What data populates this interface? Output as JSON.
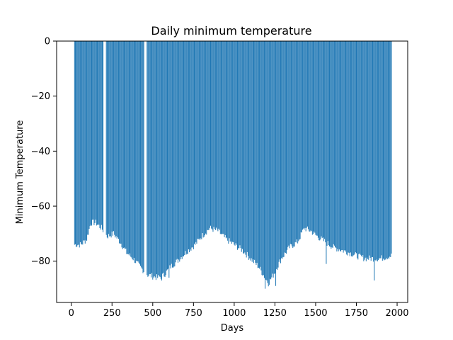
{
  "chart_data": {
    "type": "bar",
    "title": "Daily minimum temperature",
    "xlabel": "Days",
    "ylabel": "Minimum Temperature",
    "xlim": [
      -90,
      2065
    ],
    "ylim": [
      -95,
      0
    ],
    "xticks": [
      0,
      250,
      500,
      750,
      1000,
      1250,
      1500,
      1750,
      2000
    ],
    "yticks": [
      -80,
      -60,
      -40,
      -20,
      0
    ],
    "grid": false,
    "legend": "none",
    "bar_color": "#1f77b4",
    "bar_spacing_days": 5,
    "gaps": [
      [
        196,
        214
      ],
      [
        446,
        460
      ]
    ],
    "series": [
      {
        "day_range": [
          20,
          1965
        ],
        "profile_points": [
          [
            20,
            -74
          ],
          [
            60,
            -74
          ],
          [
            95,
            -72
          ],
          [
            120,
            -66
          ],
          [
            150,
            -66
          ],
          [
            185,
            -68
          ],
          [
            220,
            -71
          ],
          [
            260,
            -70
          ],
          [
            300,
            -73
          ],
          [
            340,
            -77
          ],
          [
            380,
            -79
          ],
          [
            420,
            -82
          ],
          [
            470,
            -85
          ],
          [
            530,
            -86
          ],
          [
            570,
            -85
          ],
          [
            610,
            -82
          ],
          [
            650,
            -80
          ],
          [
            700,
            -77
          ],
          [
            760,
            -74
          ],
          [
            800,
            -71
          ],
          [
            850,
            -68
          ],
          [
            900,
            -69
          ],
          [
            950,
            -72
          ],
          [
            1000,
            -74
          ],
          [
            1050,
            -76
          ],
          [
            1100,
            -79
          ],
          [
            1150,
            -82
          ],
          [
            1190,
            -86
          ],
          [
            1210,
            -88
          ],
          [
            1240,
            -85
          ],
          [
            1290,
            -79
          ],
          [
            1340,
            -75
          ],
          [
            1390,
            -73
          ],
          [
            1430,
            -68
          ],
          [
            1470,
            -69
          ],
          [
            1510,
            -71
          ],
          [
            1560,
            -73
          ],
          [
            1610,
            -75
          ],
          [
            1660,
            -76
          ],
          [
            1710,
            -77
          ],
          [
            1750,
            -78
          ],
          [
            1800,
            -79
          ],
          [
            1860,
            -79
          ],
          [
            1900,
            -79
          ],
          [
            1965,
            -78
          ]
        ],
        "spikes": [
          [
            1190,
            -90
          ],
          [
            1255,
            -89
          ],
          [
            1565,
            -81
          ],
          [
            1860,
            -87
          ],
          [
            555,
            -87
          ],
          [
            600,
            -86
          ]
        ]
      }
    ]
  }
}
